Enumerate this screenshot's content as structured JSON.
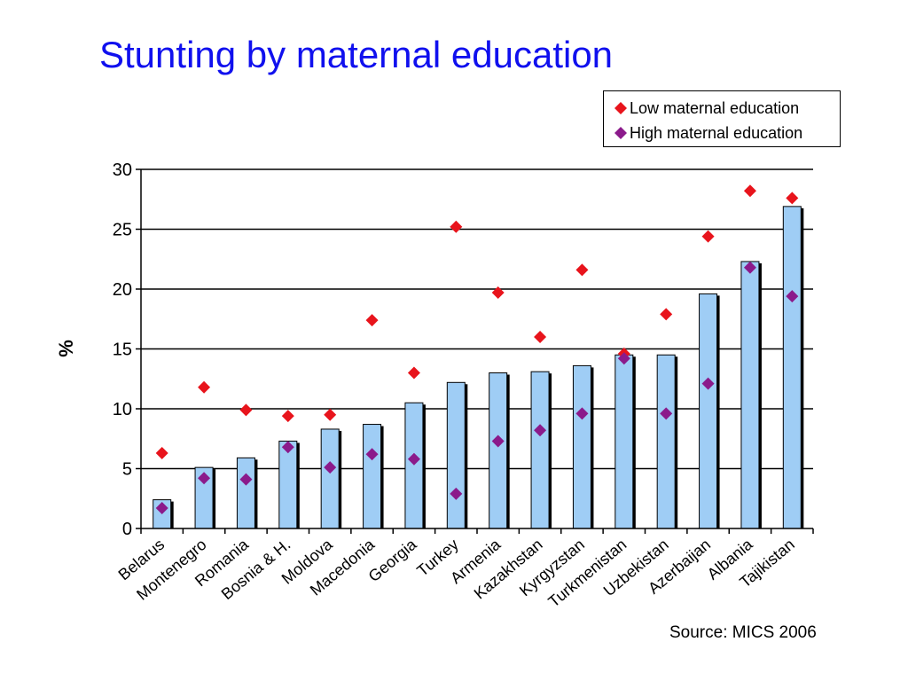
{
  "slide": {
    "title": "Stunting by maternal education",
    "source": "Source: MICS 2006"
  },
  "legend": {
    "items": [
      {
        "label": "Low maternal education",
        "color": "#e8141c",
        "marker": "diamond"
      },
      {
        "label": "High maternal education",
        "color": "#8b1a8b",
        "marker": "diamond"
      }
    ]
  },
  "chart_data": {
    "type": "bar",
    "title": "Stunting by maternal education",
    "ylabel": "%",
    "xlabel": "",
    "ylim": [
      0,
      30
    ],
    "yticks": [
      0,
      5,
      10,
      15,
      20,
      25,
      30
    ],
    "grid": true,
    "legend_position": "top-right",
    "bar_color": "#9fcdf5",
    "categories": [
      "Belarus",
      "Montenegro",
      "Romania",
      "Bosnia & H.",
      "Moldova",
      "Macedonia",
      "Georgia",
      "Turkey",
      "Armenia",
      "Kazakhstan",
      "Kyrgyzstan",
      "Turkmenistan",
      "Uzbekistan",
      "Azerbaijan",
      "Albania",
      "Tajikistan"
    ],
    "bars": [
      2.4,
      5.1,
      5.9,
      7.3,
      8.3,
      8.7,
      10.5,
      12.2,
      13.0,
      13.1,
      13.6,
      14.5,
      14.5,
      19.6,
      22.3,
      26.9
    ],
    "series": [
      {
        "name": "Low maternal education",
        "type": "marker",
        "marker": "diamond",
        "color": "#e8141c",
        "values": [
          6.3,
          11.8,
          9.9,
          9.4,
          9.5,
          17.4,
          13.0,
          25.2,
          19.7,
          16.0,
          21.6,
          14.6,
          17.9,
          24.4,
          28.2,
          27.6
        ]
      },
      {
        "name": "High maternal education",
        "type": "marker",
        "marker": "diamond",
        "color": "#8b1a8b",
        "values": [
          1.7,
          4.2,
          4.1,
          6.8,
          5.1,
          6.2,
          5.8,
          2.9,
          7.3,
          8.2,
          9.6,
          14.2,
          9.6,
          12.1,
          21.8,
          19.4
        ]
      }
    ]
  }
}
